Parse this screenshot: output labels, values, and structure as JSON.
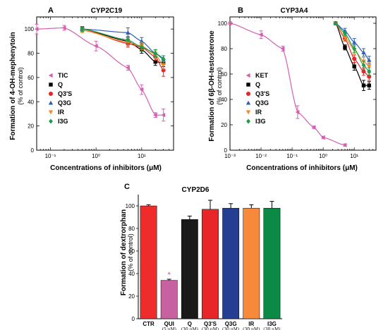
{
  "colors": {
    "TIC": "#d45fb0",
    "KET": "#d45fb0",
    "Q": "#000000",
    "Q3'S": "#e8262a",
    "Q3G": "#2c5fb8",
    "IR": "#f08a24",
    "I3G": "#17a04a",
    "CTR": "#ef2b2b",
    "QUI": "#c7619f",
    "Q_bar": "#1a1a1a",
    "Q3'S_bar": "#e8262a",
    "Q3G_bar": "#253e92",
    "IR_bar": "#f7893a",
    "I3G_bar": "#0a8a44"
  },
  "chart_data": [
    {
      "panel": "A",
      "title": "CYP2C19",
      "type": "line",
      "x_scale": "log",
      "xlabel": "Concentrations of inhibitors (μM)",
      "ylabel": "Formation of 4-OH-mephenytoin",
      "ylabel_sub": "(% of control)",
      "xlim": [
        0.05,
        50
      ],
      "ylim": [
        0,
        110
      ],
      "xticks": [
        0.1,
        1,
        10
      ],
      "xtick_labels": [
        "10⁻¹",
        "10⁰",
        "10¹"
      ],
      "yticks": [
        0,
        20,
        40,
        60,
        80,
        100
      ],
      "legend": "left-center",
      "series": [
        {
          "name": "TIC",
          "marker": "triangle-left",
          "x": [
            0.05,
            0.2,
            1,
            5,
            10,
            20,
            30
          ],
          "y": [
            100,
            101,
            86,
            68,
            50,
            29,
            29
          ],
          "err": [
            4,
            2,
            4,
            2,
            4,
            2,
            5
          ]
        },
        {
          "name": "Q",
          "marker": "square",
          "x": [
            0.5,
            5,
            10,
            20,
            30
          ],
          "y": [
            100,
            90,
            83,
            73,
            72
          ],
          "err": [
            2,
            3,
            3,
            3,
            3
          ]
        },
        {
          "name": "Q3'S",
          "marker": "circle",
          "x": [
            0.5,
            5,
            10,
            20,
            30
          ],
          "y": [
            100,
            88,
            85,
            77,
            66
          ],
          "err": [
            2,
            3,
            3,
            3,
            5
          ]
        },
        {
          "name": "Q3G",
          "marker": "triangle-up",
          "x": [
            0.5,
            5,
            10,
            20,
            30
          ],
          "y": [
            100,
            97,
            90,
            80,
            76
          ],
          "err": [
            2,
            4,
            3,
            3,
            2
          ]
        },
        {
          "name": "IR",
          "marker": "triangle-down",
          "x": [
            0.5,
            5,
            10,
            20,
            30
          ],
          "y": [
            99,
            89,
            86,
            79,
            70
          ],
          "err": [
            2,
            3,
            3,
            3,
            3
          ]
        },
        {
          "name": "I3G",
          "marker": "diamond",
          "x": [
            0.5,
            5,
            10,
            20,
            30
          ],
          "y": [
            100,
            91,
            85,
            80,
            75
          ],
          "err": [
            2,
            3,
            3,
            3,
            3
          ]
        }
      ]
    },
    {
      "panel": "B",
      "title": "CYP3A4",
      "type": "line",
      "x_scale": "log",
      "xlabel": "Concentrations of inhibitors (μM)",
      "ylabel": "Formation of 6β-OH-testosterone",
      "ylabel_sub": "(% of control)",
      "xlim": [
        0.001,
        50
      ],
      "ylim": [
        0,
        105
      ],
      "xticks": [
        0.001,
        0.01,
        0.1,
        1,
        10
      ],
      "xtick_labels": [
        "10⁻³",
        "10⁻²",
        "10⁻¹",
        "10⁰",
        "10¹"
      ],
      "yticks": [
        0,
        20,
        40,
        60,
        80,
        100
      ],
      "legend": "left-center",
      "series": [
        {
          "name": "KET",
          "marker": "triangle-left",
          "x": [
            0.001,
            0.01,
            0.05,
            0.15,
            0.5,
            1,
            5
          ],
          "y": [
            100,
            91,
            80,
            30,
            18,
            10,
            4
          ],
          "err": [
            1,
            3,
            2,
            5,
            1,
            1,
            1
          ]
        },
        {
          "name": "Q",
          "marker": "square",
          "x": [
            2.5,
            5,
            10,
            20,
            30
          ],
          "y": [
            100,
            81,
            66,
            51,
            51
          ],
          "err": [
            1,
            2,
            3,
            4,
            3
          ]
        },
        {
          "name": "Q3'S",
          "marker": "circle",
          "x": [
            2.5,
            5,
            10,
            20,
            30
          ],
          "y": [
            100,
            88,
            72,
            62,
            58
          ],
          "err": [
            1,
            2,
            3,
            3,
            3
          ]
        },
        {
          "name": "Q3G",
          "marker": "triangle-up",
          "x": [
            2.5,
            5,
            10,
            20,
            30
          ],
          "y": [
            100,
            94,
            85,
            77,
            71
          ],
          "err": [
            1,
            2,
            3,
            3,
            3
          ]
        },
        {
          "name": "IR",
          "marker": "triangle-down",
          "x": [
            2.5,
            5,
            10,
            20,
            30
          ],
          "y": [
            100,
            89,
            79,
            70,
            66
          ],
          "err": [
            1,
            2,
            3,
            3,
            3
          ]
        },
        {
          "name": "I3G",
          "marker": "diamond",
          "x": [
            2.5,
            5,
            10,
            20,
            30
          ],
          "y": [
            100,
            92,
            80,
            67,
            62
          ],
          "err": [
            1,
            2,
            3,
            3,
            3
          ]
        }
      ]
    },
    {
      "panel": "C",
      "title": "CYP2D6",
      "type": "bar",
      "ylabel": "Formation of dextrorphan",
      "ylabel_sub": "(% of control)",
      "ylim": [
        0,
        110
      ],
      "yticks": [
        0,
        20,
        40,
        60,
        80,
        100
      ],
      "categories": [
        "CTR",
        "QUI",
        "Q",
        "Q3'S",
        "Q3G",
        "IR",
        "I3G"
      ],
      "category_sub": [
        "",
        "(5 μM)",
        "(30 μM)",
        "(30 μM)",
        "(30 μM)",
        "(30 μM)",
        "(30 μM)"
      ],
      "values": [
        100,
        34,
        88,
        97,
        98,
        98,
        98
      ],
      "err": [
        1,
        1,
        3,
        8,
        4,
        3,
        6
      ],
      "annotations": [
        {
          "category": "QUI",
          "text": "*"
        }
      ]
    }
  ]
}
